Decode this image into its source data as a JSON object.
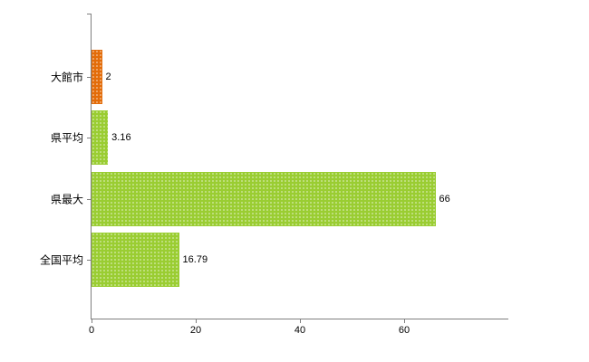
{
  "chart_data": {
    "type": "bar",
    "orientation": "horizontal",
    "title": "",
    "xlabel": "",
    "ylabel": "",
    "categories": [
      "大館市",
      "県平均",
      "県最大",
      "全国平均"
    ],
    "values": [
      2,
      3.16,
      66,
      16.79
    ],
    "value_labels": [
      "2",
      "3.16",
      "66",
      "16.79"
    ],
    "bar_colors": [
      "#e36c09",
      "#9acd32",
      "#9acd32",
      "#9acd32"
    ],
    "xlim": [
      0,
      80
    ],
    "x_ticks": [
      0,
      20,
      40,
      60
    ],
    "grid": false,
    "legend": false,
    "axis_color": "#7f7f7f"
  }
}
